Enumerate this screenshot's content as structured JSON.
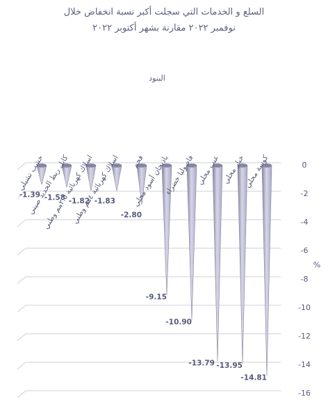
{
  "title_lines": [
    "السلع و الخدمات التي سجلت أكبر نسبة انخفاض خلال",
    "نوفمبر ٢٠٢٢ مقارنة بشهر أكتوبر ٢٠٢٢"
  ],
  "chart_data": {
    "type": "bar",
    "bar_shape": "cone",
    "title": "السلع و الخدمات التي سجلت أكبر نسبة انخفاض خلال نوفمبر ٢٠٢٢ مقارنة بشهر أكتوبر ٢٠٢٢",
    "xlabel": "البنود",
    "ylabel": "%",
    "categories": [
      "خشب تشيلي",
      "كابل ربط الحديد صيني",
      "اسلاك كهربائية ٢.٥مم وطني",
      "اسلاك كهربائية ٤مم وطني",
      "فحم",
      "باذنجان أسود محلي",
      "فاصوليا خضراء",
      "عنب محلي",
      "خيار محلي",
      "كوسة محلي"
    ],
    "values": [
      -1.39,
      -1.58,
      -1.82,
      -1.83,
      -2.8,
      -9.15,
      -10.9,
      -13.79,
      -13.95,
      -14.81
    ],
    "value_labels": [
      "-1.39",
      "-1.58",
      "-1.82",
      "-1.83",
      "-2.80",
      "-9.15",
      "-10.90",
      "-13.79",
      "-13.95",
      "-14.81"
    ],
    "yticks": [
      "0",
      "-2",
      "-4",
      "-6",
      "-8",
      "-10",
      "-12",
      "-14",
      "-16"
    ],
    "ylim": [
      -16,
      0
    ],
    "yaxis_side": "right",
    "grid": true,
    "colors": {
      "bar": "#a9a8c6",
      "bar_dark": "#86849f",
      "bar_light": "#d7d6e8",
      "grid": "#cfcfd8",
      "text": "#555a78"
    }
  }
}
